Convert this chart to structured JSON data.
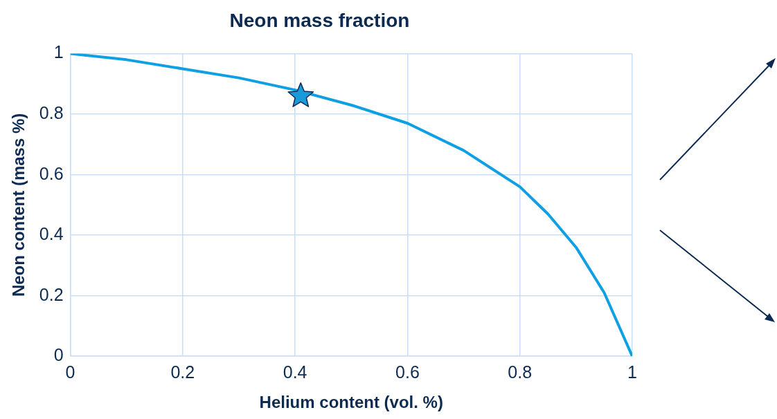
{
  "chart_data": {
    "type": "line",
    "title": "Neon mass fraction",
    "xlabel": "Helium content (vol. %)",
    "ylabel": "Neon content (mass %)",
    "xlim": [
      0,
      1
    ],
    "ylim": [
      0,
      1
    ],
    "xticks": [
      0,
      0.2,
      0.4,
      0.6,
      0.8,
      1
    ],
    "yticks": [
      0,
      0.2,
      0.4,
      0.6,
      0.8,
      1
    ],
    "grid": true,
    "legend": false,
    "series": [
      {
        "type": "line",
        "color": "#0ea0e2",
        "marker": "none",
        "x": [
          0,
          0.1,
          0.2,
          0.3,
          0.4,
          0.5,
          0.6,
          0.7,
          0.8,
          0.85,
          0.9,
          0.95,
          1
        ],
        "values": [
          1,
          0.98,
          0.95,
          0.92,
          0.88,
          0.83,
          0.77,
          0.68,
          0.56,
          0.47,
          0.36,
          0.21,
          0
        ]
      },
      {
        "type": "scatter",
        "color": "#1a9ad8",
        "marker": "star",
        "x": [
          0.41
        ],
        "values": [
          0.86
        ]
      }
    ]
  }
}
